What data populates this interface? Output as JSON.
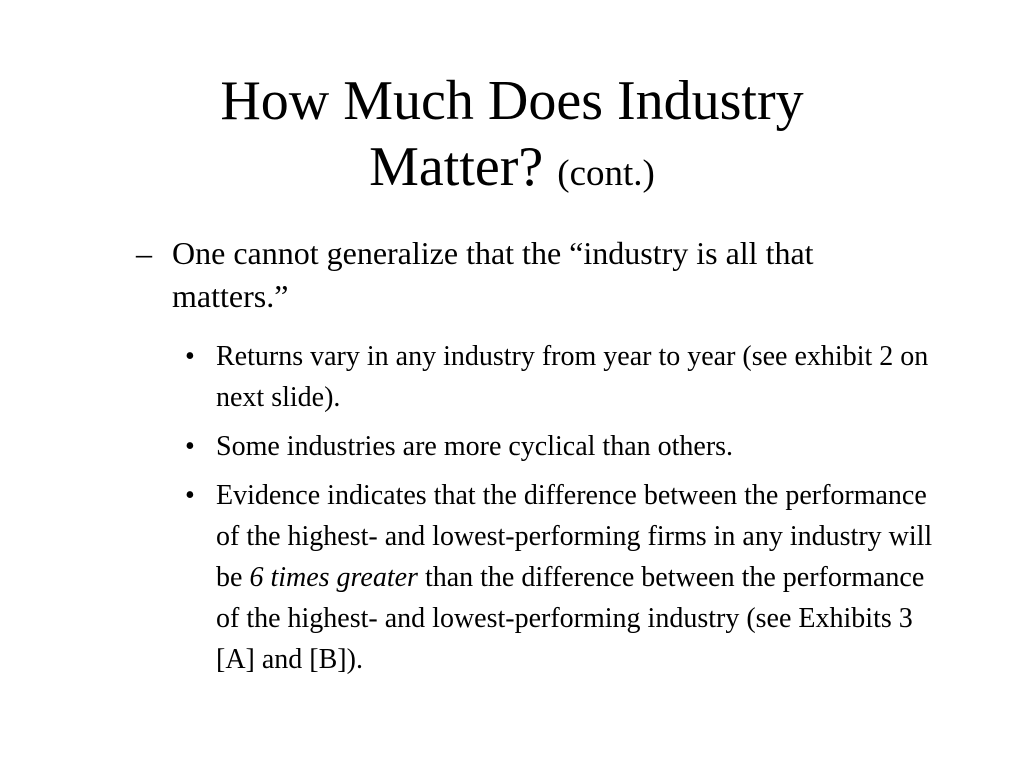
{
  "slide": {
    "title": {
      "line1": "How Much Does Industry",
      "line2": "Matter?",
      "suffix": "(cont.)"
    },
    "level1": {
      "marker": "–",
      "text": "One cannot generalize that the “industry is all that matters.”"
    },
    "bullets": {
      "marker": "•",
      "item1": "Returns vary in any industry from year to year (see exhibit 2 on next slide).",
      "item2": "Some industries are more cyclical than others.",
      "item3_before": "Evidence indicates that the difference between the performance of the highest- and lowest-performing firms in any industry will be ",
      "item3_emphasis": "6 times greater",
      "item3_after": " than the difference between the performance of the highest- and lowest-performing industry (see Exhibits 3 [A] and [B])."
    }
  }
}
